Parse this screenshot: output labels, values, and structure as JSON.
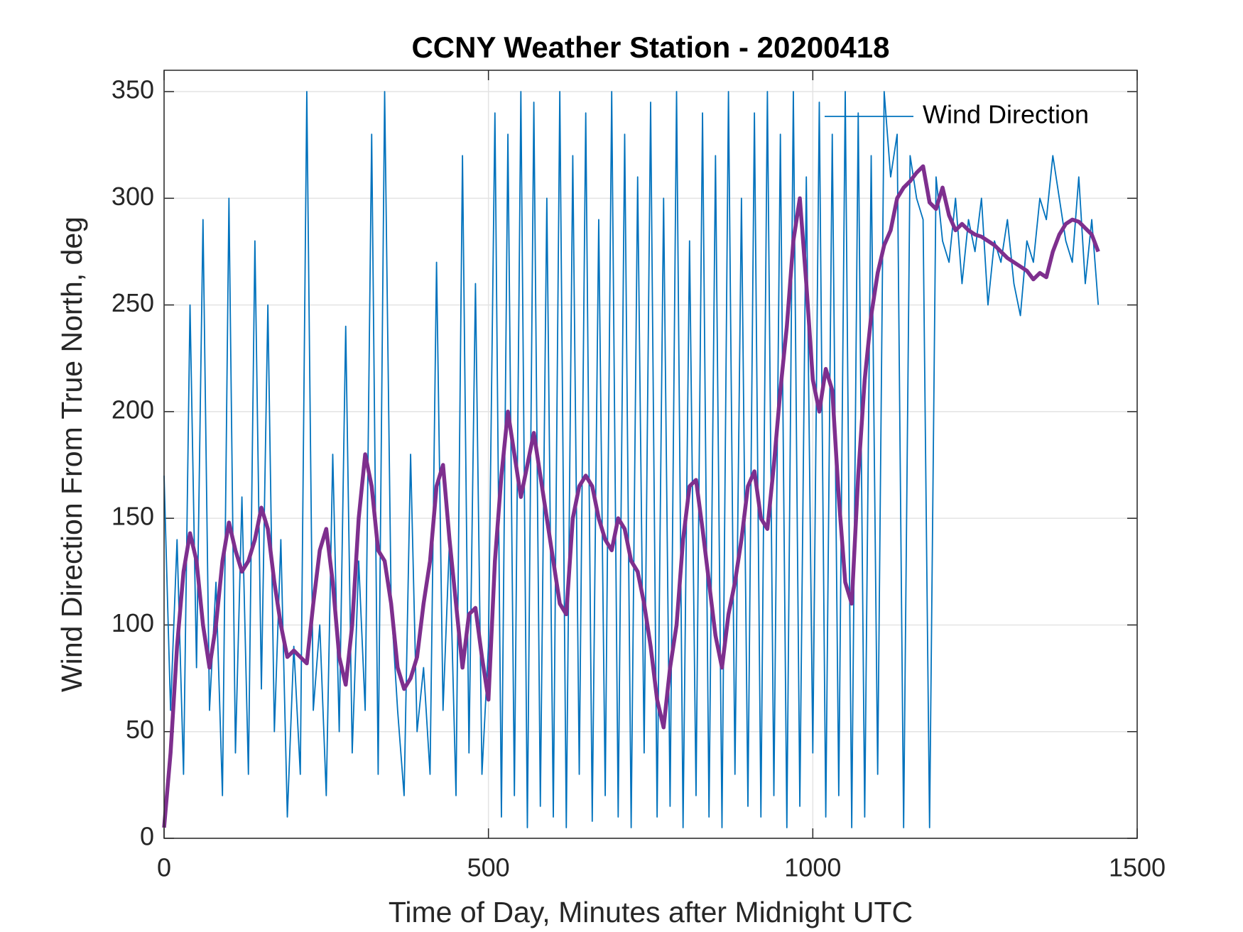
{
  "chart_data": {
    "type": "line",
    "title": "CCNY Weather Station - 20200418",
    "x_label": "Time of Day, Minutes after Midnight UTC",
    "y_label": "Wind Direction From True North, deg",
    "x": [
      0,
      10,
      20,
      30,
      40,
      50,
      60,
      70,
      80,
      90,
      100,
      110,
      120,
      130,
      140,
      150,
      160,
      170,
      180,
      190,
      200,
      210,
      220,
      230,
      240,
      250,
      260,
      270,
      280,
      290,
      300,
      310,
      320,
      330,
      340,
      350,
      360,
      370,
      380,
      390,
      400,
      410,
      420,
      430,
      440,
      450,
      460,
      470,
      480,
      490,
      500,
      510,
      520,
      530,
      540,
      550,
      560,
      570,
      580,
      590,
      600,
      610,
      620,
      630,
      640,
      650,
      660,
      670,
      680,
      690,
      700,
      710,
      720,
      730,
      740,
      750,
      760,
      770,
      780,
      790,
      800,
      810,
      820,
      830,
      840,
      850,
      860,
      870,
      880,
      890,
      900,
      910,
      920,
      930,
      940,
      950,
      960,
      970,
      980,
      990,
      1000,
      1010,
      1020,
      1030,
      1040,
      1050,
      1060,
      1070,
      1080,
      1090,
      1100,
      1110,
      1120,
      1130,
      1140,
      1150,
      1160,
      1170,
      1180,
      1190,
      1200,
      1210,
      1220,
      1230,
      1240,
      1250,
      1260,
      1270,
      1280,
      1290,
      1300,
      1310,
      1320,
      1330,
      1340,
      1350,
      1360,
      1370,
      1380,
      1390,
      1400,
      1410,
      1420,
      1430,
      1440
    ],
    "series": [
      {
        "name": "Wind Direction",
        "color": "#0072bd",
        "values": [
          170,
          60,
          140,
          30,
          250,
          80,
          290,
          60,
          120,
          20,
          300,
          40,
          160,
          30,
          280,
          70,
          250,
          50,
          140,
          10,
          90,
          30,
          350,
          60,
          100,
          20,
          180,
          50,
          240,
          40,
          130,
          60,
          330,
          30,
          350,
          110,
          60,
          20,
          180,
          50,
          80,
          30,
          270,
          60,
          140,
          20,
          320,
          40,
          260,
          30,
          90,
          340,
          10,
          330,
          20,
          350,
          5,
          345,
          15,
          300,
          10,
          350,
          5,
          320,
          30,
          340,
          8,
          290,
          20,
          350,
          10,
          330,
          5,
          310,
          40,
          345,
          10,
          300,
          15,
          350,
          5,
          280,
          20,
          340,
          10,
          320,
          5,
          350,
          30,
          300,
          15,
          340,
          10,
          350,
          20,
          330,
          5,
          350,
          15,
          310,
          40,
          345,
          10,
          330,
          20,
          350,
          5,
          340,
          10,
          320,
          30,
          350,
          310,
          330,
          5,
          320,
          300,
          290,
          5,
          310,
          280,
          270,
          300,
          260,
          290,
          275,
          300,
          250,
          280,
          270,
          290,
          260,
          245,
          280,
          270,
          300,
          290,
          320,
          300,
          280,
          270,
          310,
          260,
          290,
          250
        ]
      },
      {
        "color": "#7e2f8e",
        "values": [
          5,
          40,
          90,
          125,
          143,
          130,
          100,
          80,
          100,
          130,
          148,
          135,
          125,
          130,
          140,
          155,
          145,
          120,
          100,
          85,
          88,
          85,
          82,
          110,
          135,
          145,
          120,
          85,
          72,
          100,
          150,
          180,
          165,
          135,
          130,
          110,
          80,
          70,
          75,
          85,
          110,
          130,
          165,
          175,
          140,
          110,
          80,
          105,
          108,
          85,
          65,
          130,
          170,
          200,
          180,
          160,
          175,
          190,
          170,
          150,
          130,
          110,
          105,
          150,
          165,
          170,
          165,
          150,
          140,
          135,
          150,
          145,
          130,
          125,
          110,
          90,
          65,
          52,
          80,
          100,
          140,
          165,
          168,
          145,
          120,
          95,
          80,
          105,
          120,
          140,
          165,
          172,
          150,
          145,
          175,
          210,
          240,
          280,
          300,
          260,
          215,
          200,
          220,
          210,
          160,
          120,
          110,
          170,
          215,
          245,
          265,
          278,
          285,
          300,
          305,
          308,
          312,
          315,
          298,
          295,
          305,
          292,
          285,
          288,
          285,
          283,
          282,
          280,
          278,
          275,
          272,
          270,
          268,
          266,
          262,
          265,
          263,
          275,
          283,
          288,
          290,
          289,
          286,
          283,
          275
        ]
      }
    ],
    "xlim": [
      0,
      1500
    ],
    "xticks": [
      0,
      500,
      1000,
      1500
    ],
    "ylim": [
      0,
      360
    ],
    "yticks": [
      0,
      50,
      100,
      150,
      200,
      250,
      300,
      350
    ],
    "grid": true,
    "legend": "upper right"
  }
}
